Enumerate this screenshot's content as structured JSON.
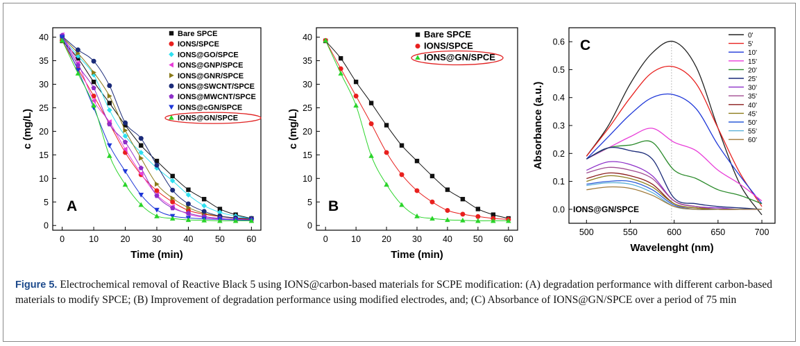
{
  "caption": {
    "label": "Figure 5.",
    "text": " Electrochemical removal of Reactive Black 5 using IONS@carbon-based materials for SCPE modification: (A) degradation performance with different carbon-based materials to modify SPCE; (B) Improvement of degradation performance using modified electrodes, and; (C) Absorbance of IONS@GN/SPCE over a period of 75 min"
  },
  "chart_data": [
    {
      "type": "scatter",
      "panel_letter": "A",
      "xlabel": "Time (min)",
      "ylabel": "c (mg/L)",
      "xlim": [
        -3,
        63
      ],
      "ylim": [
        -1,
        42
      ],
      "xticks": [
        0,
        10,
        20,
        30,
        40,
        50,
        60
      ],
      "yticks": [
        0,
        5,
        10,
        15,
        20,
        25,
        30,
        35,
        40
      ],
      "legend_position": "top-right",
      "highlighted_series": "IONS@GN/SPCE",
      "x": [
        0,
        5,
        10,
        15,
        20,
        25,
        30,
        35,
        40,
        45,
        50,
        55,
        60
      ],
      "series": [
        {
          "name": "Bare SPCE",
          "marker": "square",
          "color": "#111111",
          "values": [
            39.2,
            35.5,
            30.5,
            26.0,
            21.3,
            17.0,
            13.7,
            10.5,
            7.6,
            5.6,
            3.5,
            2.3,
            1.5
          ]
        },
        {
          "name": "IONS/SPCE",
          "marker": "circle",
          "color": "#e8201e",
          "values": [
            39.3,
            33.3,
            27.5,
            21.6,
            15.5,
            10.8,
            7.4,
            5.0,
            3.2,
            2.4,
            1.9,
            1.5,
            1.3
          ]
        },
        {
          "name": "IONS@GO/SPCE",
          "marker": "diamond",
          "color": "#2ee0f0",
          "values": [
            39.8,
            36.0,
            32.0,
            24.5,
            19.0,
            15.5,
            12.2,
            9.5,
            6.5,
            4.2,
            2.8,
            2.0,
            1.5
          ]
        },
        {
          "name": "IONS@GNP/SPCE",
          "marker": "triangle-left",
          "color": "#e83cd8",
          "values": [
            40.5,
            34.5,
            26.5,
            22.0,
            16.2,
            11.0,
            6.5,
            4.0,
            2.4,
            1.7,
            1.4,
            1.2,
            1.1
          ]
        },
        {
          "name": "IONS@GNR/SPCE",
          "marker": "triangle-right",
          "color": "#8a7a18",
          "values": [
            40.0,
            36.6,
            32.5,
            27.5,
            20.2,
            14.3,
            8.8,
            5.8,
            3.8,
            2.6,
            2.0,
            1.6,
            1.4
          ]
        },
        {
          "name": "IONS@SWCNT/SPCE",
          "marker": "circle",
          "color": "#1a2a78",
          "values": [
            40.2,
            37.3,
            34.9,
            29.7,
            21.8,
            18.5,
            12.8,
            7.5,
            4.6,
            3.0,
            2.0,
            1.6,
            1.5
          ]
        },
        {
          "name": "IONS@MWCNT/SPCE",
          "marker": "pentagon",
          "color": "#8d2fc8",
          "values": [
            40.4,
            34.0,
            29.2,
            21.5,
            17.7,
            12.2,
            6.3,
            3.7,
            2.6,
            1.9,
            1.5,
            1.3,
            1.2
          ]
        },
        {
          "name": "IONS@cGN/SPCE",
          "marker": "triangle-down",
          "color": "#1d36d8",
          "values": [
            40.0,
            33.0,
            25.0,
            17.0,
            11.5,
            6.5,
            3.3,
            2.0,
            1.6,
            1.4,
            1.3,
            1.2,
            1.1
          ]
        },
        {
          "name": "IONS@GN/SPCE",
          "marker": "triangle-up",
          "color": "#2ad42a",
          "values": [
            39.3,
            32.3,
            25.5,
            14.8,
            8.7,
            4.4,
            2.0,
            1.5,
            1.2,
            1.1,
            1.0,
            1.0,
            1.0
          ]
        }
      ]
    },
    {
      "type": "scatter",
      "panel_letter": "B",
      "xlabel": "Time (min)",
      "ylabel": "c (mg/L)",
      "xlim": [
        -3,
        63
      ],
      "ylim": [
        -1,
        42
      ],
      "xticks": [
        0,
        10,
        20,
        30,
        40,
        50,
        60
      ],
      "yticks": [
        0,
        5,
        10,
        15,
        20,
        25,
        30,
        35,
        40
      ],
      "legend_position": "top-right",
      "highlighted_series": "IONS@GN/SPCE",
      "x": [
        0,
        5,
        10,
        15,
        20,
        25,
        30,
        35,
        40,
        45,
        50,
        55,
        60
      ],
      "series": [
        {
          "name": "Bare SPCE",
          "marker": "square",
          "color": "#111111",
          "values": [
            39.2,
            35.5,
            30.5,
            26.0,
            21.3,
            17.0,
            13.7,
            10.5,
            7.6,
            5.6,
            3.5,
            2.3,
            1.5
          ]
        },
        {
          "name": "IONS/SPCE",
          "marker": "circle",
          "color": "#e8201e",
          "values": [
            39.3,
            33.3,
            27.5,
            21.6,
            15.5,
            10.8,
            7.4,
            5.0,
            3.2,
            2.4,
            1.9,
            1.5,
            1.3
          ]
        },
        {
          "name": "IONS@GN/SPCE",
          "marker": "triangle-up",
          "color": "#2ad42a",
          "values": [
            39.3,
            32.3,
            25.5,
            14.8,
            8.7,
            4.4,
            2.0,
            1.5,
            1.2,
            1.1,
            1.0,
            1.0,
            1.0
          ]
        }
      ]
    },
    {
      "type": "line",
      "panel_letter": "C",
      "annotation": "IONS@GN/SPCE",
      "xlabel": "Wavelenght (nm)",
      "ylabel": "Absorbance (a.u.)",
      "xlim": [
        480,
        715
      ],
      "ylim": [
        -0.05,
        0.65
      ],
      "xticks": [
        500,
        550,
        600,
        650,
        700
      ],
      "yticks": [
        0.0,
        0.1,
        0.2,
        0.3,
        0.4,
        0.5,
        0.6
      ],
      "reference_line_x": 597,
      "legend_position": "top-right",
      "x": [
        500,
        525,
        550,
        575,
        600,
        625,
        650,
        675,
        700
      ],
      "series": [
        {
          "name": "0'",
          "color": "#222222",
          "values": [
            0.19,
            0.3,
            0.45,
            0.56,
            0.6,
            0.51,
            0.29,
            0.09,
            -0.02
          ]
        },
        {
          "name": "5'",
          "color": "#e8201e",
          "values": [
            0.19,
            0.29,
            0.4,
            0.49,
            0.51,
            0.45,
            0.29,
            0.13,
            0.01
          ]
        },
        {
          "name": "10'",
          "color": "#1d36d8",
          "values": [
            0.18,
            0.26,
            0.34,
            0.4,
            0.41,
            0.36,
            0.23,
            0.12,
            0.02
          ]
        },
        {
          "name": "15'",
          "color": "#e83cd8",
          "values": [
            0.18,
            0.22,
            0.26,
            0.29,
            0.24,
            0.21,
            0.14,
            0.09,
            0.03
          ]
        },
        {
          "name": "20'",
          "color": "#2a8a2a",
          "values": [
            0.18,
            0.22,
            0.23,
            0.24,
            0.14,
            0.11,
            0.07,
            0.05,
            0.02
          ]
        },
        {
          "name": "25'",
          "color": "#1a2a78",
          "values": [
            0.18,
            0.22,
            0.21,
            0.18,
            0.04,
            0.02,
            0.01,
            0.005,
            0.0
          ]
        },
        {
          "name": "30'",
          "color": "#8d2fc8",
          "values": [
            0.14,
            0.17,
            0.16,
            0.12,
            0.03,
            0.01,
            0.005,
            0.0,
            0.0
          ]
        },
        {
          "name": "35'",
          "color": "#a04a90",
          "values": [
            0.13,
            0.15,
            0.14,
            0.11,
            0.03,
            0.01,
            0.0,
            0.0,
            0.0
          ]
        },
        {
          "name": "40'",
          "color": "#8a1a1a",
          "values": [
            0.11,
            0.13,
            0.12,
            0.09,
            0.02,
            0.005,
            0.0,
            0.0,
            0.0
          ]
        },
        {
          "name": "45'",
          "color": "#8a7a18",
          "values": [
            0.1,
            0.12,
            0.11,
            0.08,
            0.02,
            0.005,
            0.0,
            0.0,
            0.0
          ]
        },
        {
          "name": "50'",
          "color": "#2a5ad8",
          "values": [
            0.09,
            0.1,
            0.1,
            0.07,
            0.015,
            0.0,
            0.0,
            0.0,
            0.0
          ]
        },
        {
          "name": "55'",
          "color": "#5ab0d8",
          "values": [
            0.085,
            0.095,
            0.09,
            0.06,
            0.01,
            0.0,
            0.0,
            0.0,
            0.0
          ]
        },
        {
          "name": "60'",
          "color": "#a07a3a",
          "values": [
            0.07,
            0.08,
            0.075,
            0.05,
            0.01,
            0.0,
            0.0,
            0.0,
            0.0
          ]
        }
      ]
    }
  ]
}
